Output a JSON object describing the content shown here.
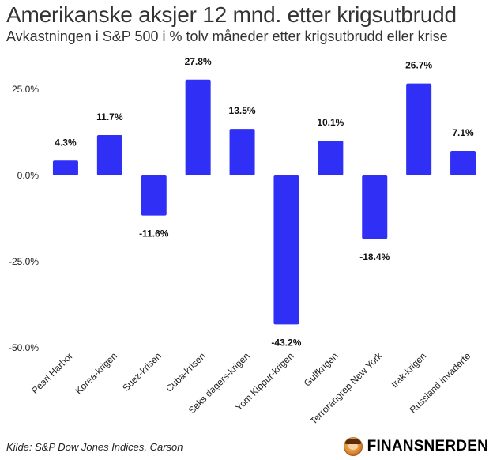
{
  "header": {
    "title": "Amerikanske aksjer 12 mnd. etter krigsutbrudd",
    "subtitle": "Avkastningen i S&P 500 i % tolv måneder etter krigsutbrudd eller krise"
  },
  "footer": {
    "source": "Kilde: S&P Dow Jones Indices, Carson",
    "brand": "FINANSNERDEN"
  },
  "chart_data": {
    "type": "bar",
    "title": "Amerikanske aksjer 12 mnd. etter krigsutbrudd",
    "subtitle": "Avkastningen i S&P 500 i % tolv måneder etter krigsutbrudd eller krise",
    "categories": [
      "Pearl Harbor",
      "Korea-krigen",
      "Suez-krisen",
      "Cuba-krisen",
      "Seks dagers-krigen",
      "Yom Kippur-krigen",
      "Gulfkrigen",
      "Terrorangrep New York",
      "Irak-krigen",
      "Russland invaderte"
    ],
    "values": [
      4.3,
      11.7,
      -11.6,
      27.8,
      13.5,
      -43.2,
      10.1,
      -18.4,
      26.7,
      7.1
    ],
    "value_labels": [
      "4.3%",
      "11.7%",
      "-11.6%",
      "27.8%",
      "13.5%",
      "-43.2%",
      "10.1%",
      "-18.4%",
      "26.7%",
      "7.1%"
    ],
    "ylim": [
      -50,
      30
    ],
    "yticks": [
      25,
      0,
      -25,
      -50
    ],
    "ytick_labels": [
      "25.0%",
      "0.0%",
      "-25.0%",
      "-50.0%"
    ],
    "xlabel": "",
    "ylabel": "",
    "grid": false,
    "legend": "none",
    "bar_color": "#2f2ff5"
  }
}
